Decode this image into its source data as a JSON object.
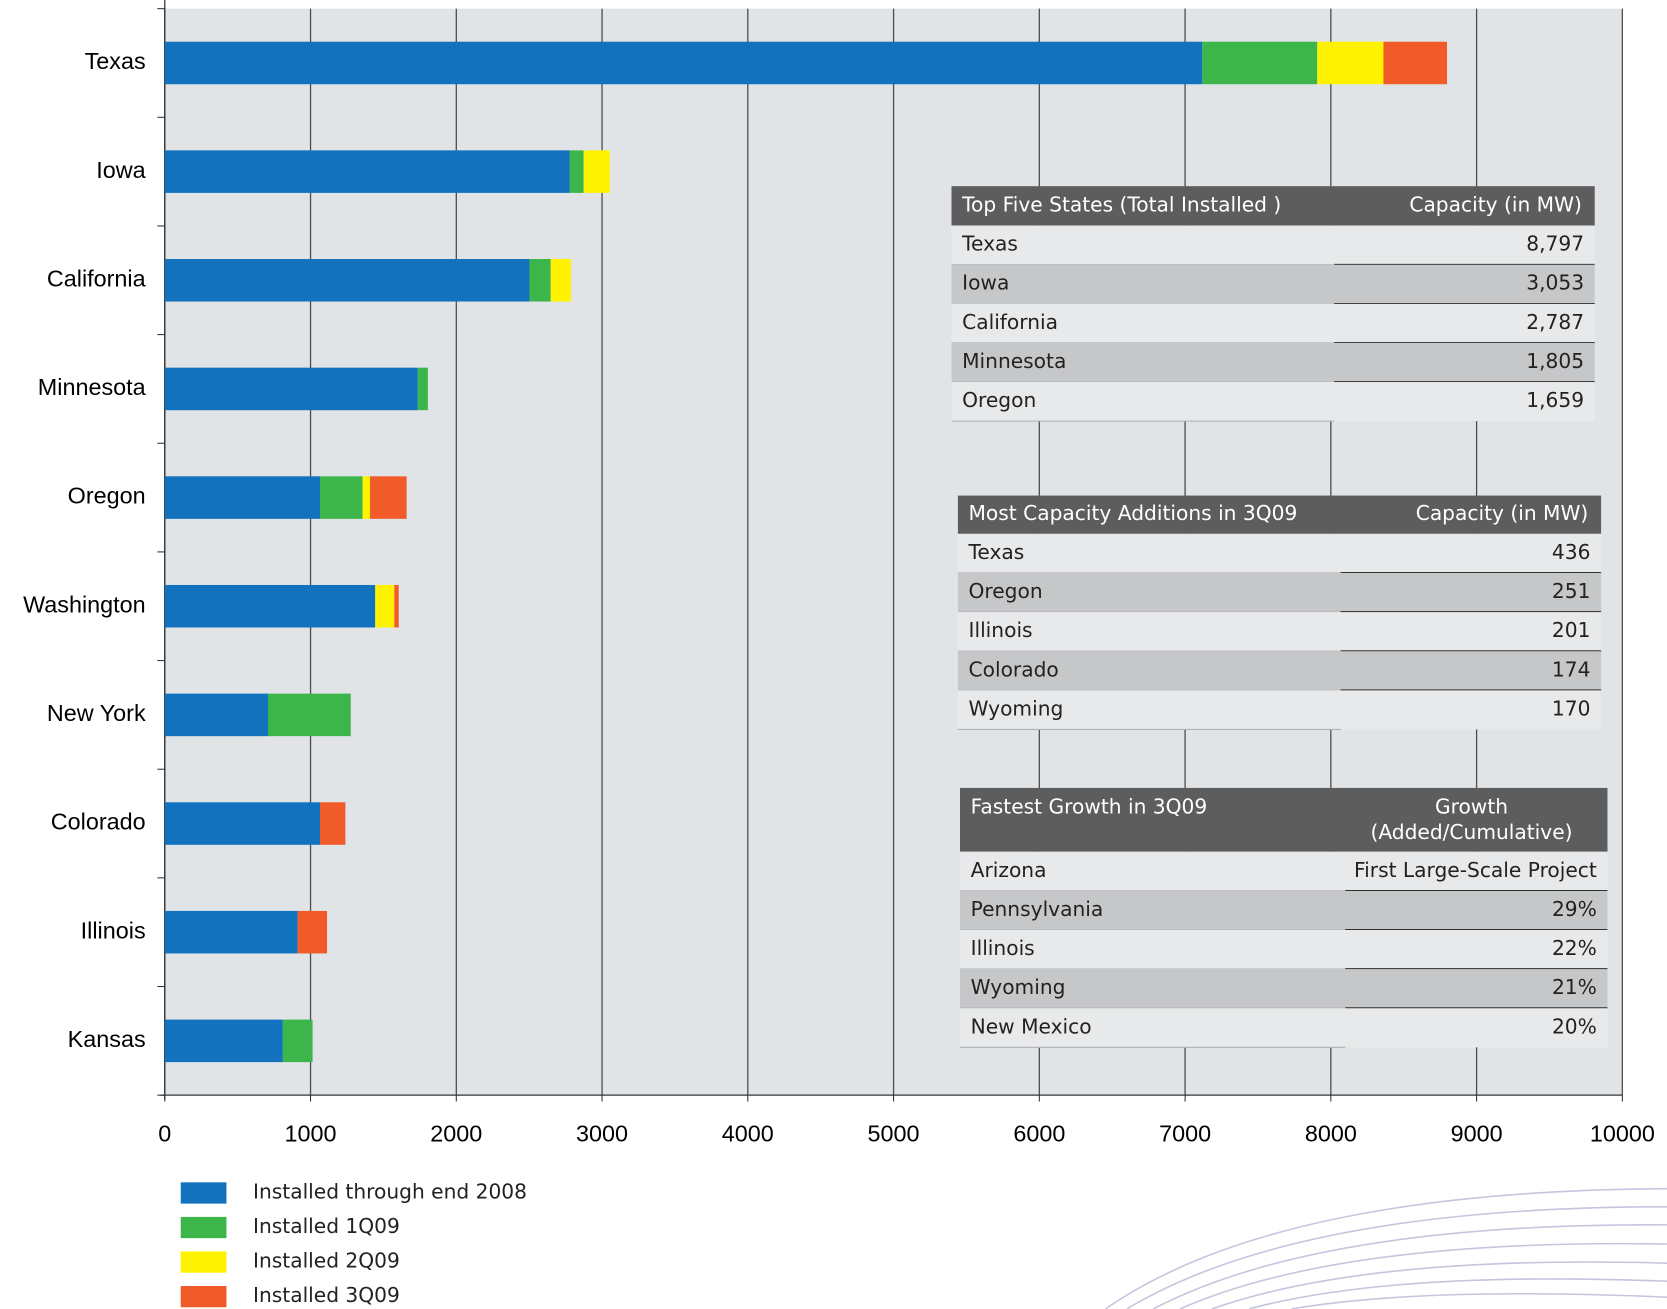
{
  "chart_data": {
    "type": "stacked_bar_horizontal",
    "categories": [
      "Texas",
      "Iowa",
      "California",
      "Minnesota",
      "Oregon",
      "Washington",
      "New York",
      "Colorado",
      "Illinois",
      "Kansas"
    ],
    "series": [
      {
        "name": "Installed through end 2008",
        "color": "#1272bd",
        "values": [
          7118,
          2779,
          2502,
          1736,
          1065,
          1444,
          708,
          1065,
          912,
          810
        ]
      },
      {
        "name": "Installed 1Q09",
        "color": "#3cb54a",
        "values": [
          789,
          95,
          146,
          69,
          292,
          0,
          568,
          0,
          0,
          204
        ]
      },
      {
        "name": "Installed 2Q09",
        "color": "#fff200",
        "values": [
          454,
          179,
          139,
          0,
          51,
          131,
          0,
          0,
          0,
          0
        ]
      },
      {
        "name": "Installed 3Q09",
        "color": "#f15a29",
        "values": [
          436,
          0,
          0,
          0,
          251,
          30,
          0,
          174,
          201,
          0
        ]
      }
    ],
    "xlim": [
      0,
      10000
    ],
    "xticks": [
      0,
      1000,
      2000,
      3000,
      4000,
      5000,
      6000,
      7000,
      8000,
      9000,
      10000
    ],
    "grid": true
  },
  "tables": [
    {
      "header": [
        "Top Five States (Total Installed )",
        "Capacity (in MW)"
      ],
      "rows": [
        [
          "Texas",
          "8,797"
        ],
        [
          "Iowa",
          "3,053"
        ],
        [
          "California",
          "2,787"
        ],
        [
          "Minnesota",
          "1,805"
        ],
        [
          "Oregon",
          "1,659"
        ]
      ]
    },
    {
      "header": [
        "Most Capacity Additions in 3Q09",
        "Capacity (in MW)"
      ],
      "rows": [
        [
          "Texas",
          "436"
        ],
        [
          "Oregon",
          "251"
        ],
        [
          "Illinois",
          "201"
        ],
        [
          "Colorado",
          "174"
        ],
        [
          "Wyoming",
          "170"
        ]
      ]
    },
    {
      "header": [
        "Fastest Growth in 3Q09",
        [
          "Growth",
          "(Added/Cumulative)"
        ]
      ],
      "rows": [
        [
          "Arizona",
          "First Large-Scale Project"
        ],
        [
          "Pennsylvania",
          "29%"
        ],
        [
          "Illinois",
          "22%"
        ],
        [
          "Wyoming",
          "21%"
        ],
        [
          "New Mexico",
          "20%"
        ]
      ]
    }
  ]
}
